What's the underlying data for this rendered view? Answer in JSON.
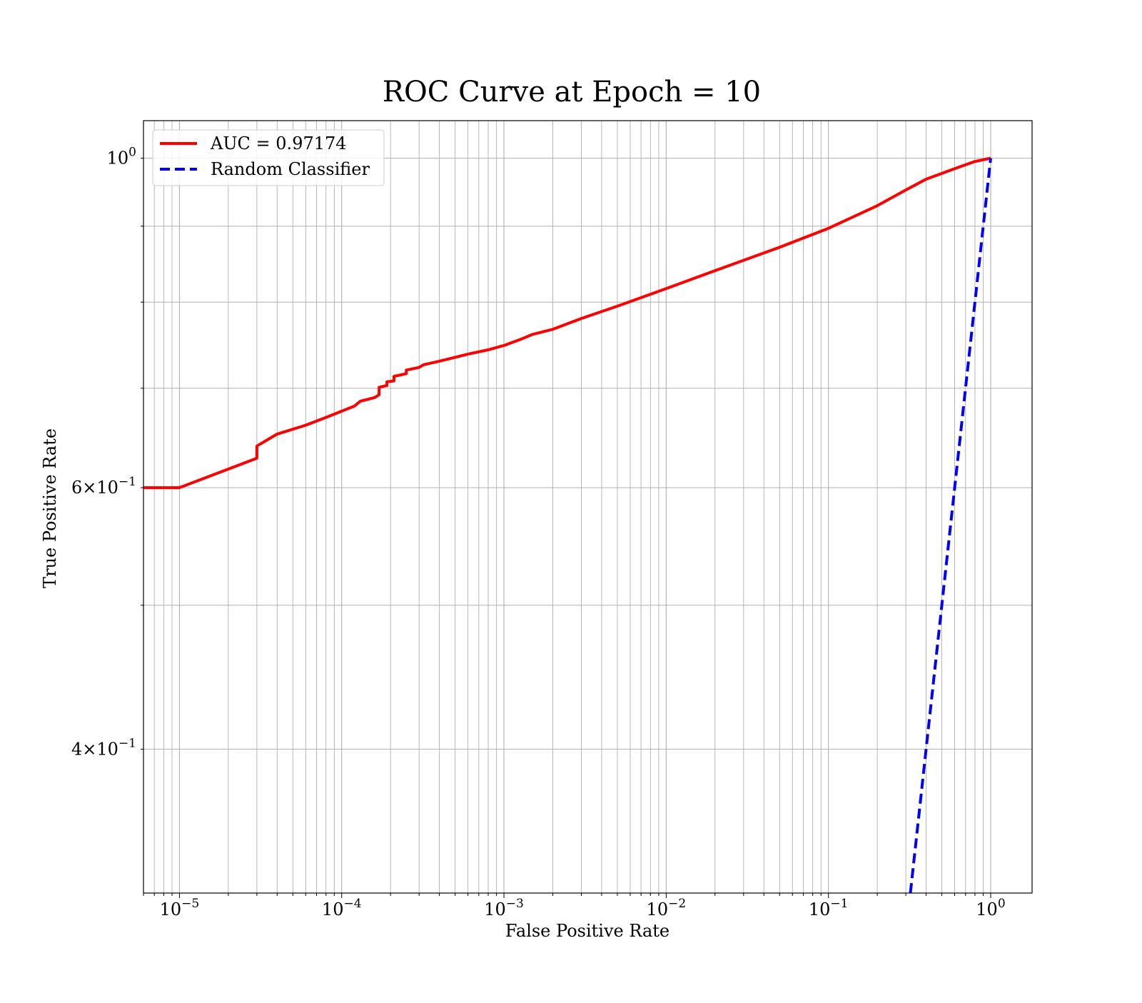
{
  "chart_data": {
    "type": "line",
    "title": "ROC Curve at Epoch = 10",
    "xlabel": "False Positive Rate",
    "ylabel": "True Positive Rate",
    "xscale": "log",
    "yscale": "log",
    "xlim": [
      6e-06,
      1.8
    ],
    "ylim": [
      0.32,
      1.06
    ],
    "grid": "major and minor",
    "legend_placement": "upper-left",
    "x_ticks": [
      {
        "value": 1e-05,
        "base": "10",
        "exp": "−5"
      },
      {
        "value": 0.0001,
        "base": "10",
        "exp": "−4"
      },
      {
        "value": 0.001,
        "base": "10",
        "exp": "−3"
      },
      {
        "value": 0.01,
        "base": "10",
        "exp": "−2"
      },
      {
        "value": 0.1,
        "base": "10",
        "exp": "−1"
      },
      {
        "value": 1,
        "base": "10",
        "exp": "0"
      }
    ],
    "y_ticks": [
      {
        "value": 0.4,
        "base": "4×10",
        "exp": "−1"
      },
      {
        "value": 0.6,
        "base": "6×10",
        "exp": "−1"
      },
      {
        "value": 1.0,
        "base": "10",
        "exp": "0"
      }
    ],
    "series": [
      {
        "name": "AUC = 0.97174",
        "color": "#ff0000",
        "style": "solid",
        "x": [
          6e-06,
          1e-05,
          3e-05,
          3e-05,
          4e-05,
          6e-05,
          8e-05,
          0.00012,
          0.00013,
          0.00016,
          0.00017,
          0.00017,
          0.00019,
          0.00019,
          0.00021,
          0.00021,
          0.00025,
          0.00025,
          0.0003,
          0.00032,
          0.0004,
          0.0006,
          0.0008,
          0.001,
          0.0013,
          0.0015,
          0.002,
          0.003,
          0.005,
          0.01,
          0.02,
          0.05,
          0.1,
          0.2,
          0.3,
          0.4,
          0.6,
          0.8,
          1.0
        ],
        "y": [
          0.6,
          0.6,
          0.628,
          0.64,
          0.652,
          0.661,
          0.669,
          0.681,
          0.686,
          0.69,
          0.693,
          0.701,
          0.703,
          0.707,
          0.708,
          0.713,
          0.716,
          0.72,
          0.723,
          0.726,
          0.73,
          0.738,
          0.743,
          0.748,
          0.756,
          0.761,
          0.767,
          0.78,
          0.795,
          0.817,
          0.84,
          0.871,
          0.897,
          0.929,
          0.952,
          0.968,
          0.984,
          0.995,
          1.0
        ]
      },
      {
        "name": "Random Classifier",
        "color": "#0000ff",
        "style": "dashed",
        "x": [
          0.32,
          1.0
        ],
        "y": [
          0.32,
          1.0
        ]
      }
    ]
  }
}
